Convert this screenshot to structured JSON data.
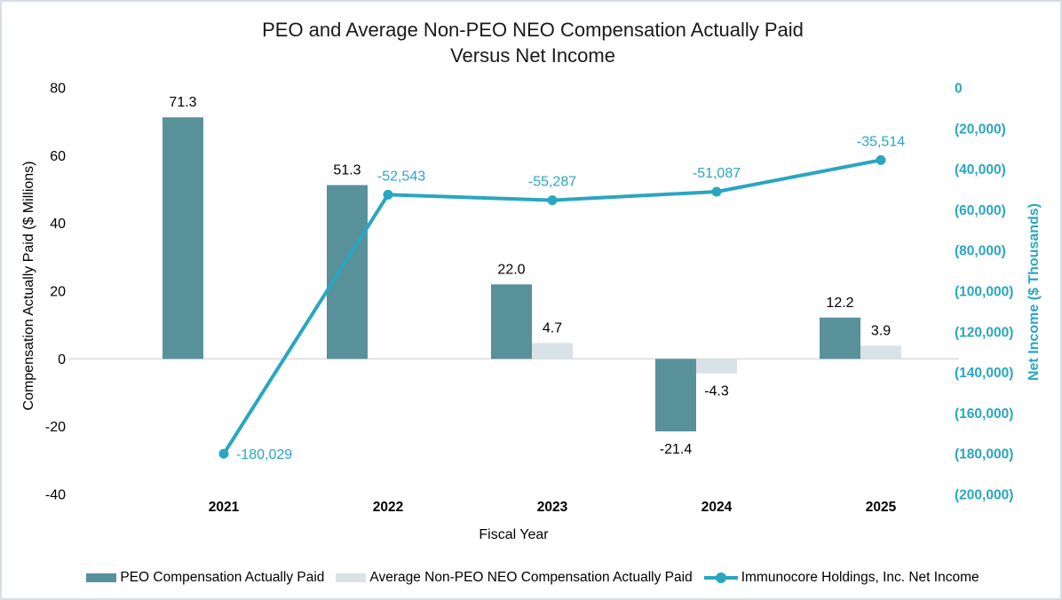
{
  "title": {
    "line1": "PEO and Average Non-PEO NEO Compensation Actually Paid",
    "line2": "Versus Net Income"
  },
  "axes": {
    "left": {
      "title": "Compensation Actually Paid ($ Millions)",
      "ticks": [
        {
          "value": 80,
          "label": "80"
        },
        {
          "value": 60,
          "label": "60"
        },
        {
          "value": 40,
          "label": "40"
        },
        {
          "value": 20,
          "label": "20"
        },
        {
          "value": 0,
          "label": "0"
        },
        {
          "value": -20,
          "label": "-20"
        },
        {
          "value": -40,
          "label": "-40"
        }
      ]
    },
    "right": {
      "title": "Net Income ($ Thousands)",
      "ticks": [
        {
          "value": 0,
          "label": "0"
        },
        {
          "value": -20000,
          "label": "(20,000)"
        },
        {
          "value": -40000,
          "label": "(40,000)"
        },
        {
          "value": -60000,
          "label": "(60,000)"
        },
        {
          "value": -80000,
          "label": "(80,000)"
        },
        {
          "value": -100000,
          "label": "(100,000)"
        },
        {
          "value": -120000,
          "label": "(120,000)"
        },
        {
          "value": -140000,
          "label": "(140,000)"
        },
        {
          "value": -160000,
          "label": "(160,000)"
        },
        {
          "value": -180000,
          "label": "(180,000)"
        },
        {
          "value": -200000,
          "label": "(200,000)"
        }
      ]
    },
    "x": {
      "title": "Fiscal Year",
      "categories": [
        "2021",
        "2022",
        "2023",
        "2024",
        "2025"
      ]
    }
  },
  "chart_data": {
    "type": "bar+line",
    "categories": [
      "2021",
      "2022",
      "2023",
      "2024",
      "2025"
    ],
    "left_axis_label": "Compensation Actually Paid ($ Millions)",
    "right_axis_label": "Net Income ($ Thousands)",
    "xlabel": "Fiscal Year",
    "left_ylim": [
      -40,
      80
    ],
    "right_ylim": [
      -200000,
      0
    ],
    "grid": "zero-line-only",
    "legend_position": "bottom",
    "series": [
      {
        "name": "PEO Compensation Actually Paid",
        "type": "bar",
        "axis": "left",
        "color": "#58919a",
        "values": [
          71.3,
          51.3,
          22.0,
          -21.4,
          12.2
        ],
        "labels": [
          "71.3",
          "51.3",
          "22.0",
          "-21.4",
          "12.2"
        ]
      },
      {
        "name": "Average Non-PEO NEO Compensation Actually Paid",
        "type": "bar",
        "axis": "left",
        "color": "#d9e2e6",
        "values": [
          null,
          null,
          4.7,
          -4.3,
          3.9
        ],
        "labels": [
          null,
          null,
          "4.7",
          "-4.3",
          "3.9"
        ]
      },
      {
        "name": "Immunocore Holdings, Inc. Net Income",
        "type": "line",
        "axis": "right",
        "color": "#2aa6c0",
        "values": [
          -180029,
          -52543,
          -55287,
          -51087,
          -35514
        ],
        "labels": [
          "-180,029",
          "-52,543",
          "-55,287",
          "-51,087",
          "-35,514"
        ]
      }
    ],
    "colors": {
      "peo_bar": "#58919a",
      "neo_bar": "#d9e2e6",
      "net_income_line": "#2aa6c0",
      "zero_gridline": "#d9d9d9",
      "text": "#000000"
    }
  }
}
